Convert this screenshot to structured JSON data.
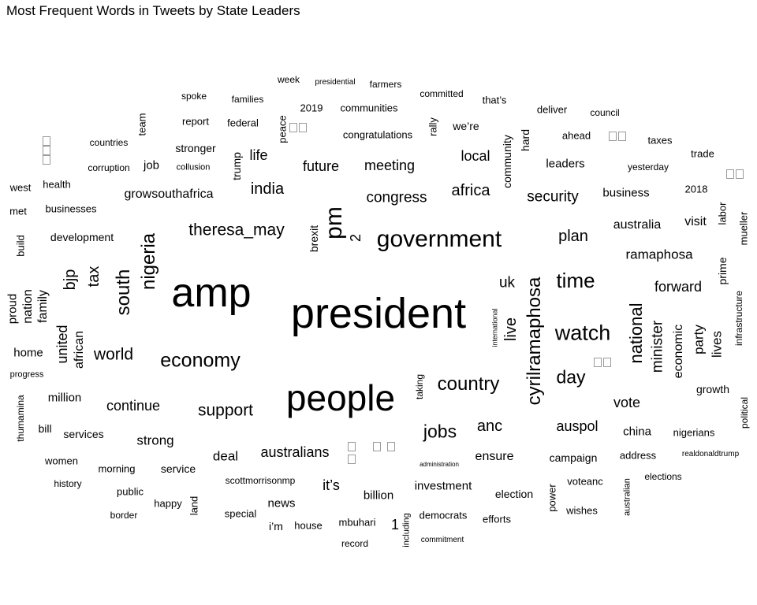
{
  "chart_data": {
    "type": "wordcloud",
    "title": "Most Frequent Words in Tweets by State Leaders",
    "words": [
      {
        "text": "president",
        "size": 54,
        "rot": 0
      },
      {
        "text": "people",
        "size": 46,
        "rot": 0
      },
      {
        "text": "amp",
        "size": 52,
        "rot": 0
      },
      {
        "text": "government",
        "size": 30,
        "rot": 0
      },
      {
        "text": "pm",
        "size": 30,
        "rot": 90
      },
      {
        "text": "cyrilramaphosa",
        "size": 24,
        "rot": 90
      },
      {
        "text": "watch",
        "size": 27,
        "rot": 0
      },
      {
        "text": "time",
        "size": 26,
        "rot": 0
      },
      {
        "text": "economy",
        "size": 25,
        "rot": 0
      },
      {
        "text": "country",
        "size": 24,
        "rot": 0
      },
      {
        "text": "nigeria",
        "size": 24,
        "rot": 90
      },
      {
        "text": "south",
        "size": 24,
        "rot": 90
      },
      {
        "text": "national",
        "size": 22,
        "rot": 90
      },
      {
        "text": "day",
        "size": 23,
        "rot": 0
      },
      {
        "text": "jobs",
        "size": 23,
        "rot": 0
      },
      {
        "text": "world",
        "size": 21,
        "rot": 0
      },
      {
        "text": "support",
        "size": 21,
        "rot": 0
      },
      {
        "text": "theresa_may",
        "size": 21,
        "rot": 0
      },
      {
        "text": "india",
        "size": 20,
        "rot": 0
      },
      {
        "text": "africa",
        "size": 20,
        "rot": 0
      },
      {
        "text": "plan",
        "size": 20,
        "rot": 0
      },
      {
        "text": "live",
        "size": 20,
        "rot": 90
      },
      {
        "text": "tax",
        "size": 20,
        "rot": 90
      },
      {
        "text": "bjp",
        "size": 20,
        "rot": 90
      },
      {
        "text": "anc",
        "size": 20,
        "rot": 0
      },
      {
        "text": "minister",
        "size": 19,
        "rot": 90
      },
      {
        "text": "security",
        "size": 19,
        "rot": 0
      },
      {
        "text": "congress",
        "size": 19,
        "rot": 0
      },
      {
        "text": "uk",
        "size": 19,
        "rot": 0
      },
      {
        "text": "forward",
        "size": 18,
        "rot": 0
      },
      {
        "text": "continue",
        "size": 18,
        "rot": 0
      },
      {
        "text": "auspol",
        "size": 18,
        "rot": 0
      },
      {
        "text": "future",
        "size": 18,
        "rot": 0
      },
      {
        "text": "meeting",
        "size": 18,
        "rot": 0
      },
      {
        "text": "local",
        "size": 18,
        "rot": 0
      },
      {
        "text": "ramaphosa",
        "size": 17,
        "rot": 0
      },
      {
        "text": "vote",
        "size": 18,
        "rot": 0
      },
      {
        "text": "united",
        "size": 18,
        "rot": 90
      },
      {
        "text": "life",
        "size": 18,
        "rot": 0
      },
      {
        "text": "australians",
        "size": 18,
        "rot": 0
      },
      {
        "text": "party",
        "size": 17,
        "rot": 90
      },
      {
        "text": "lives",
        "size": 17,
        "rot": 90
      },
      {
        "text": "economic",
        "size": 16,
        "rot": 90
      },
      {
        "text": "it’s",
        "size": 18,
        "rot": 0
      },
      {
        "text": "strong",
        "size": 17,
        "rot": 0
      },
      {
        "text": "deal",
        "size": 17,
        "rot": 0
      },
      {
        "text": "ensure",
        "size": 16,
        "rot": 0
      },
      {
        "text": "family",
        "size": 16,
        "rot": 90
      },
      {
        "text": "nation",
        "size": 16,
        "rot": 90
      },
      {
        "text": "african",
        "size": 16,
        "rot": 90
      },
      {
        "text": "visit",
        "size": 16,
        "rot": 0
      },
      {
        "text": "australia",
        "size": 16,
        "rot": 0
      },
      {
        "text": "growsouthafrica",
        "size": 16,
        "rot": 0
      },
      {
        "text": "leaders",
        "size": 15,
        "rot": 0
      },
      {
        "text": "china",
        "size": 15,
        "rot": 0
      },
      {
        "text": "business",
        "size": 15,
        "rot": 0
      },
      {
        "text": "home",
        "size": 15,
        "rot": 0
      },
      {
        "text": "investment",
        "size": 15,
        "rot": 0
      },
      {
        "text": "election",
        "size": 14,
        "rot": 0
      },
      {
        "text": "billion",
        "size": 15,
        "rot": 0
      },
      {
        "text": "news",
        "size": 15,
        "rot": 0
      },
      {
        "text": "job",
        "size": 15,
        "rot": 0
      },
      {
        "text": "stronger",
        "size": 14,
        "rot": 0
      },
      {
        "text": "million",
        "size": 15,
        "rot": 0
      },
      {
        "text": "proud",
        "size": 15,
        "rot": 90
      },
      {
        "text": "community",
        "size": 14,
        "rot": 90
      },
      {
        "text": "hard",
        "size": 14,
        "rot": 90
      },
      {
        "text": "trump",
        "size": 14,
        "rot": 90
      },
      {
        "text": "brexit",
        "size": 14,
        "rot": 90
      },
      {
        "text": "2",
        "size": 18,
        "rot": 90
      },
      {
        "text": "1",
        "size": 18,
        "rot": 0
      },
      {
        "text": "development",
        "size": 14,
        "rot": 0
      },
      {
        "text": "services",
        "size": 14,
        "rot": 0
      },
      {
        "text": "service",
        "size": 14,
        "rot": 0
      },
      {
        "text": "campaign",
        "size": 14,
        "rot": 0
      },
      {
        "text": "address",
        "size": 13,
        "rot": 0
      },
      {
        "text": "voteanc",
        "size": 13,
        "rot": 0
      },
      {
        "text": "prime",
        "size": 14,
        "rot": 90
      },
      {
        "text": "growth",
        "size": 14,
        "rot": 0
      },
      {
        "text": "bill",
        "size": 14,
        "rot": 0
      },
      {
        "text": "i’m",
        "size": 14,
        "rot": 0
      },
      {
        "text": "we’re",
        "size": 14,
        "rot": 0
      },
      {
        "text": "nigerians",
        "size": 13,
        "rot": 0
      },
      {
        "text": "congratulations",
        "size": 13,
        "rot": 0
      },
      {
        "text": "businesses",
        "size": 13,
        "rot": 0
      },
      {
        "text": "met",
        "size": 13,
        "rot": 0
      },
      {
        "text": "build",
        "size": 13,
        "rot": 90
      },
      {
        "text": "ahead",
        "size": 13,
        "rot": 0
      },
      {
        "text": "2018",
        "size": 13,
        "rot": 0
      },
      {
        "text": "peace",
        "size": 13,
        "rot": 90
      },
      {
        "text": "federal",
        "size": 13,
        "rot": 0
      },
      {
        "text": "report",
        "size": 13,
        "rot": 0
      },
      {
        "text": "labor",
        "size": 13,
        "rot": 90
      },
      {
        "text": "mueller",
        "size": 13,
        "rot": 90
      },
      {
        "text": "health",
        "size": 13,
        "rot": 0
      },
      {
        "text": "women",
        "size": 13,
        "rot": 0
      },
      {
        "text": "happy",
        "size": 13,
        "rot": 0
      },
      {
        "text": "land",
        "size": 13,
        "rot": 90
      },
      {
        "text": "special",
        "size": 13,
        "rot": 0
      },
      {
        "text": "house",
        "size": 13,
        "rot": 0
      },
      {
        "text": "mbuhari",
        "size": 13,
        "rot": 0
      },
      {
        "text": "democrats",
        "size": 13,
        "rot": 0
      },
      {
        "text": "efforts",
        "size": 13,
        "rot": 0
      },
      {
        "text": "wishes",
        "size": 13,
        "rot": 0
      },
      {
        "text": "power",
        "size": 13,
        "rot": 90
      },
      {
        "text": "morning",
        "size": 13,
        "rot": 0
      },
      {
        "text": "public",
        "size": 13,
        "rot": 0
      },
      {
        "text": "deliver",
        "size": 13,
        "rot": 0
      },
      {
        "text": "that’s",
        "size": 13,
        "rot": 0
      },
      {
        "text": "taxes",
        "size": 13,
        "rot": 0
      },
      {
        "text": "trade",
        "size": 13,
        "rot": 0
      },
      {
        "text": "2019",
        "size": 13,
        "rot": 0
      },
      {
        "text": "communities",
        "size": 13,
        "rot": 0
      },
      {
        "text": "rally",
        "size": 13,
        "rot": 90
      },
      {
        "text": "team",
        "size": 13,
        "rot": 90
      },
      {
        "text": "west",
        "size": 13,
        "rot": 0
      },
      {
        "text": "thumamina",
        "size": 12,
        "rot": 90
      },
      {
        "text": "political",
        "size": 12,
        "rot": 90
      },
      {
        "text": "infrastructure",
        "size": 12,
        "rot": 90
      },
      {
        "text": "scottmorrisonmp",
        "size": 12,
        "rot": 0
      },
      {
        "text": "record",
        "size": 12,
        "rot": 0
      },
      {
        "text": "elections",
        "size": 12,
        "rot": 0
      },
      {
        "text": "week",
        "size": 12,
        "rot": 0
      },
      {
        "text": "farmers",
        "size": 12,
        "rot": 0
      },
      {
        "text": "spoke",
        "size": 12,
        "rot": 0
      },
      {
        "text": "families",
        "size": 12,
        "rot": 0
      },
      {
        "text": "committed",
        "size": 12,
        "rot": 0
      },
      {
        "text": "council",
        "size": 12,
        "rot": 0
      },
      {
        "text": "countries",
        "size": 12,
        "rot": 0
      },
      {
        "text": "corruption",
        "size": 12,
        "rot": 0
      },
      {
        "text": "yesterday",
        "size": 12,
        "rot": 0
      },
      {
        "text": "border",
        "size": 12,
        "rot": 0
      },
      {
        "text": "history",
        "size": 12,
        "rot": 0
      },
      {
        "text": "taking",
        "size": 12,
        "rot": 90
      },
      {
        "text": "progress",
        "size": 11,
        "rot": 0
      },
      {
        "text": "australian",
        "size": 11,
        "rot": 90
      },
      {
        "text": "including",
        "size": 11,
        "rot": 90
      },
      {
        "text": "collusion",
        "size": 11,
        "rot": 0
      },
      {
        "text": "presidential",
        "size": 10,
        "rot": 0
      },
      {
        "text": "commitment",
        "size": 10,
        "rot": 0
      },
      {
        "text": "realdonaldtrump",
        "size": 10,
        "rot": 0
      },
      {
        "text": "international",
        "size": 9,
        "rot": 90
      },
      {
        "text": "administration",
        "size": 8,
        "rot": 0
      }
    ]
  }
}
